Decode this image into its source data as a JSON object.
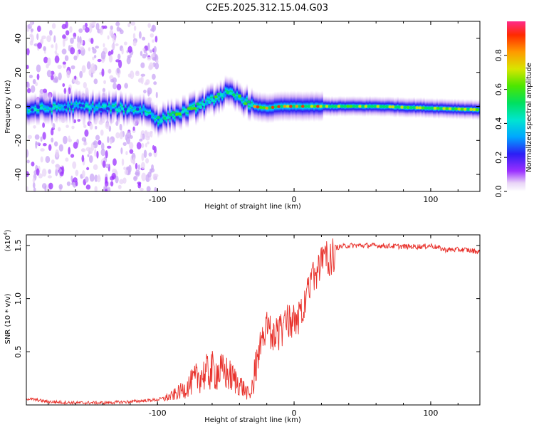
{
  "figure_title": "C2E5.2025.312.15.04.G03",
  "colors": {
    "snr_line": "#e8312b",
    "frame": "#000000",
    "background": "#ffffff"
  },
  "chart_data": [
    {
      "type": "heatmap",
      "name": "spectrogram",
      "xlabel": "Height of straight line (km)",
      "ylabel": "Frequency (Hz)",
      "xlim": [
        -196,
        136
      ],
      "ylim": [
        -50,
        50
      ],
      "xticks": [
        {
          "value": -100,
          "label": "-100"
        },
        {
          "value": 0,
          "label": "0"
        },
        {
          "value": 100,
          "label": "100"
        }
      ],
      "yticks": [
        {
          "value": -40,
          "label": "-40"
        },
        {
          "value": -20,
          "label": "-20"
        },
        {
          "value": 0,
          "label": "0"
        },
        {
          "value": 20,
          "label": "20"
        },
        {
          "value": 40,
          "label": "40"
        }
      ],
      "colorbar": {
        "label": "Normalized spectral amplitude",
        "range": [
          0,
          1
        ],
        "ticks": [
          {
            "value": 0.0,
            "label": "0.0"
          },
          {
            "value": 0.2,
            "label": "0.2"
          },
          {
            "value": 0.4,
            "label": "0.4"
          },
          {
            "value": 0.6,
            "label": "0.6"
          },
          {
            "value": 0.8,
            "label": "0.8"
          }
        ]
      },
      "ridge": {
        "description_points_x": [
          -196,
          -160,
          -130,
          -110,
          -100,
          -80,
          -65,
          -50,
          -40,
          -30,
          -20,
          -10,
          0,
          20,
          60,
          100,
          136
        ],
        "frequency_hz": [
          -2,
          0,
          -1,
          -2,
          -8,
          -3,
          2,
          8,
          5,
          0,
          -1,
          0,
          0,
          0,
          0,
          -1,
          -2
        ]
      }
    },
    {
      "type": "line",
      "name": "snr",
      "xlabel": "Height of straight line (km)",
      "ylabel": "SNR (10 * v/v)",
      "scale_label": "(x10",
      "scale_exponent": "4",
      "scale_close": ")",
      "xlim": [
        -196,
        136
      ],
      "ylim": [
        0,
        1.6
      ],
      "xticks": [
        {
          "value": -100,
          "label": "-100"
        },
        {
          "value": 0,
          "label": "0"
        },
        {
          "value": 100,
          "label": "100"
        }
      ],
      "yticks": [
        {
          "value": 0.5,
          "label": "0.5"
        },
        {
          "value": 1.0,
          "label": "1.0"
        },
        {
          "value": 1.5,
          "label": "1.5"
        }
      ],
      "series": [
        {
          "name": "SNR",
          "x": [
            -196,
            -190,
            -180,
            -160,
            -140,
            -120,
            -100,
            -90,
            -80,
            -70,
            -60,
            -50,
            -40,
            -32,
            -28,
            -24,
            -20,
            -15,
            -10,
            -5,
            0,
            5,
            10,
            15,
            20,
            25,
            30,
            40,
            60,
            80,
            95,
            100,
            110,
            125,
            136
          ],
          "y": [
            0.06,
            0.05,
            0.03,
            0.02,
            0.02,
            0.03,
            0.05,
            0.08,
            0.15,
            0.27,
            0.32,
            0.3,
            0.2,
            0.08,
            0.45,
            0.75,
            0.78,
            0.72,
            0.75,
            0.85,
            0.88,
            0.9,
            1.1,
            1.3,
            1.4,
            1.45,
            1.48,
            1.5,
            1.5,
            1.49,
            1.49,
            1.5,
            1.46,
            1.46,
            1.44
          ]
        }
      ]
    }
  ]
}
